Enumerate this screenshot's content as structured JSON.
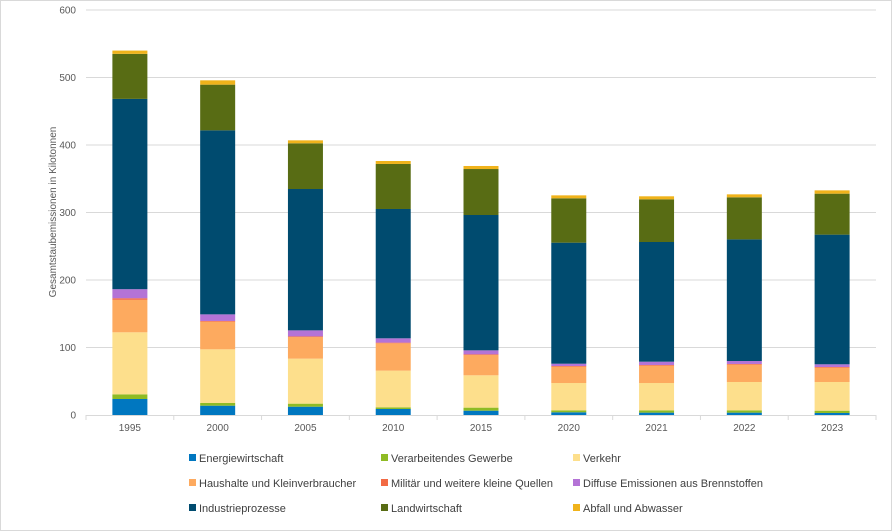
{
  "chart_data": {
    "type": "bar",
    "stacked": true,
    "title": "",
    "xlabel": "",
    "ylabel": "Gesamtstaubemissionen in Kilotonnen",
    "ylim": [
      0,
      600
    ],
    "yticks": [
      0,
      100,
      200,
      300,
      400,
      500,
      600
    ],
    "grid": true,
    "legend_position": "bottom",
    "categories": [
      "1995",
      "2000",
      "2005",
      "2010",
      "2015",
      "2020",
      "2021",
      "2022",
      "2023"
    ],
    "series": [
      {
        "name": "Energiewirtschaft",
        "color": "#0077c0",
        "values": [
          23.7,
          13.8,
          12.3,
          8.9,
          6.4,
          4.0,
          3.5,
          3.5,
          3.0
        ]
      },
      {
        "name": "Verarbeitendes Gewerbe",
        "color": "#8fbb24",
        "values": [
          6.9,
          4.0,
          4.5,
          2.5,
          4.5,
          2.9,
          3.4,
          3.4,
          3.4
        ]
      },
      {
        "name": "Verkehr",
        "color": "#fddf8c",
        "values": [
          91.9,
          79.5,
          66.7,
          54.3,
          47.9,
          40.5,
          40.5,
          42.0,
          42.5
        ]
      },
      {
        "name": "Haushalte und Kleinverbraucher",
        "color": "#fdaa5f",
        "values": [
          48.1,
          41.0,
          32.0,
          40.5,
          30.1,
          24.2,
          25.7,
          25.7,
          21.2
        ]
      },
      {
        "name": "Militär und weitere kleine Quellen",
        "color": "#f26a44",
        "values": [
          2.4,
          1.0,
          1.0,
          1.0,
          1.0,
          1.0,
          1.0,
          1.0,
          1.0
        ]
      },
      {
        "name": "Diffuse Emissionen aus Brennstoffen",
        "color": "#b473d6",
        "values": [
          13.4,
          9.8,
          8.9,
          6.4,
          5.9,
          3.4,
          4.9,
          4.4,
          4.0
        ]
      },
      {
        "name": "Industrieprozesse",
        "color": "#004b6f",
        "values": [
          281.9,
          272.6,
          209.4,
          191.6,
          200.5,
          179.3,
          177.3,
          180.2,
          192.1
        ]
      },
      {
        "name": "Landwirtschaft",
        "color": "#586c14",
        "values": [
          66.7,
          67.7,
          67.7,
          66.7,
          68.1,
          65.7,
          63.2,
          62.3,
          60.7
        ]
      },
      {
        "name": "Abfall und Abwasser",
        "color": "#f0b31b",
        "values": [
          4.9,
          6.4,
          4.4,
          4.4,
          4.5,
          4.4,
          4.5,
          4.4,
          4.9
        ]
      }
    ],
    "legend_order": [
      "Energiewirtschaft",
      "Verarbeitendes Gewerbe",
      "Verkehr",
      "Haushalte und Kleinverbraucher",
      "Militär und weitere kleine Quellen",
      "Diffuse Emissionen aus Brennstoffen",
      "Industrieprozesse",
      "Landwirtschaft",
      "Abfall und Abwasser"
    ]
  }
}
